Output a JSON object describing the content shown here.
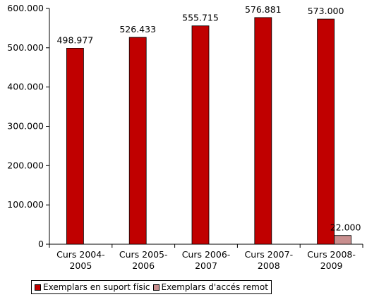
{
  "chart_data": {
    "type": "bar",
    "categories": [
      [
        "Curs 2004-",
        "2005"
      ],
      [
        "Curs 2005-",
        "2006"
      ],
      [
        "Curs 2006-",
        "2007"
      ],
      [
        "Curs 2007-",
        "2008"
      ],
      [
        "Curs 2008-",
        "2009"
      ]
    ],
    "series": [
      {
        "name": "Exemplars en suport físic",
        "color": "#c00000",
        "values": [
          498977,
          526433,
          555715,
          576881,
          573000
        ],
        "labels": [
          "498.977",
          "526.433",
          "555.715",
          "576.881",
          "573.000"
        ]
      },
      {
        "name": "Exemplars d'accés remot",
        "color": "#c98f8f",
        "values": [
          null,
          null,
          null,
          null,
          22000
        ],
        "labels": [
          null,
          null,
          null,
          null,
          "22.000"
        ]
      }
    ],
    "ylim": [
      0,
      600000
    ],
    "yticks": [
      0,
      100000,
      200000,
      300000,
      400000,
      500000,
      600000
    ],
    "ytick_labels": [
      "0",
      "100.000",
      "200.000",
      "300.000",
      "400.000",
      "500.000",
      "600.000"
    ],
    "legend_position": "bottom",
    "grid": false,
    "title": "",
    "xlabel": "",
    "ylabel": ""
  }
}
